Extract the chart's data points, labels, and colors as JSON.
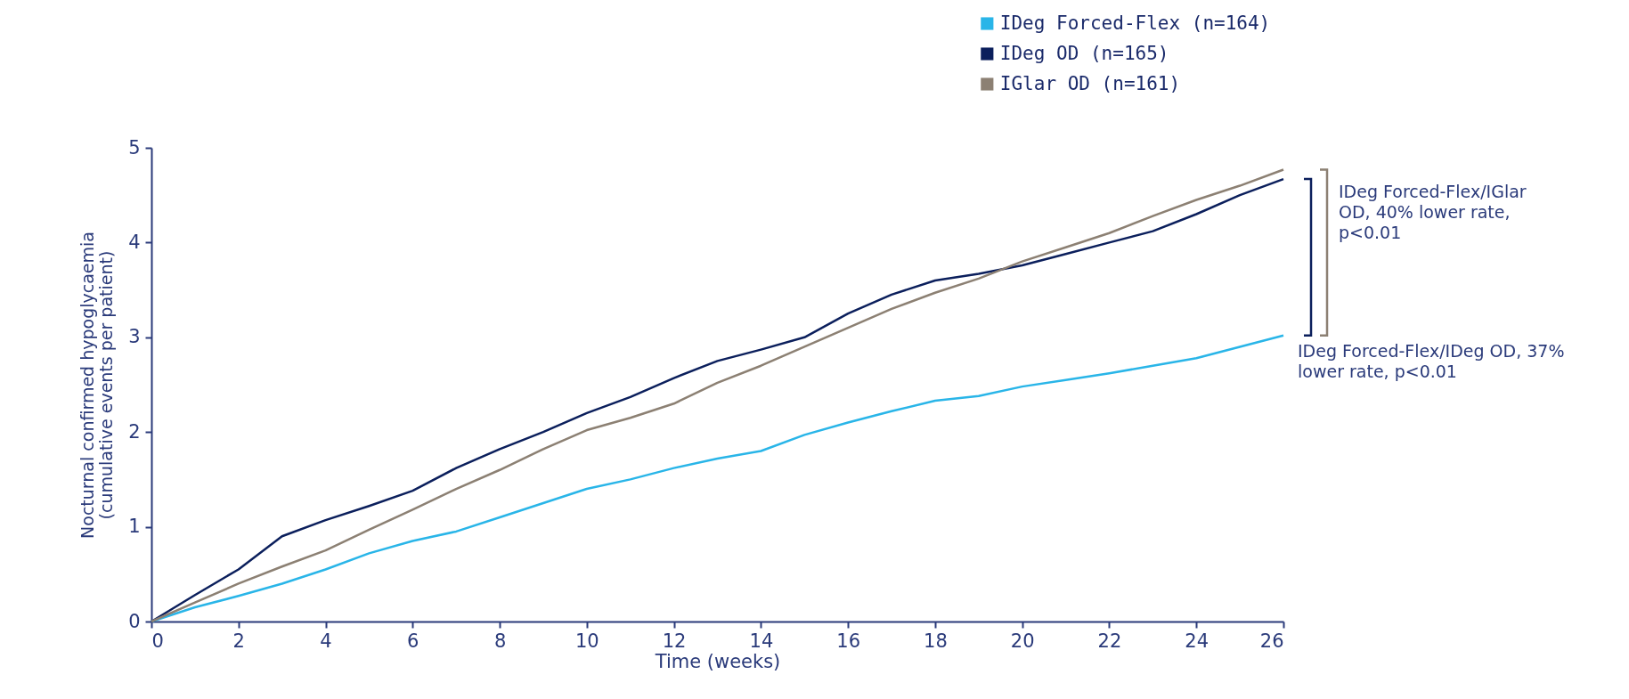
{
  "chart_data": {
    "type": "line",
    "xlabel": "Time (weeks)",
    "ylabel": "Nocturnal confirmed hypoglycaemia\n(cumulative events per patient)",
    "x": [
      0,
      1,
      2,
      3,
      4,
      5,
      6,
      7,
      8,
      9,
      10,
      11,
      12,
      13,
      14,
      15,
      16,
      17,
      18,
      19,
      20,
      21,
      22,
      23,
      24,
      25,
      26
    ],
    "series": [
      {
        "name": "IDeg Forced-Flex (n=164)",
        "color": "#29b5e8",
        "values": [
          0,
          0.15,
          0.27,
          0.4,
          0.55,
          0.72,
          0.85,
          0.95,
          1.1,
          1.25,
          1.4,
          1.5,
          1.62,
          1.72,
          1.8,
          1.97,
          2.1,
          2.22,
          2.33,
          2.38,
          2.48,
          2.55,
          2.62,
          2.7,
          2.78,
          2.9,
          3.02
        ]
      },
      {
        "name": "IDeg OD (n=165)",
        "color": "#0b1f5c",
        "values": [
          0,
          0.28,
          0.55,
          0.9,
          1.07,
          1.22,
          1.38,
          1.62,
          1.82,
          2.0,
          2.2,
          2.37,
          2.57,
          2.75,
          2.87,
          3.0,
          3.25,
          3.45,
          3.6,
          3.67,
          3.76,
          3.88,
          4.0,
          4.12,
          4.3,
          4.5,
          4.67
        ]
      },
      {
        "name": "IGlar OD (n=161)",
        "color": "#8c8073",
        "values": [
          0,
          0.2,
          0.4,
          0.58,
          0.75,
          0.97,
          1.18,
          1.4,
          1.6,
          1.82,
          2.02,
          2.15,
          2.3,
          2.52,
          2.7,
          2.9,
          3.1,
          3.3,
          3.47,
          3.62,
          3.8,
          3.95,
          4.1,
          4.28,
          4.45,
          4.6,
          4.77
        ]
      }
    ],
    "xlim": [
      0,
      26
    ],
    "xticks": [
      0,
      2,
      4,
      6,
      8,
      10,
      12,
      14,
      16,
      18,
      20,
      22,
      24,
      26
    ],
    "ylim": [
      0,
      5
    ],
    "yticks": [
      0,
      1,
      2,
      3,
      4,
      5
    ],
    "grid": false,
    "legend": "top right",
    "marker": "none",
    "line_style": "solid",
    "annotations": [
      "IDeg Forced-Flex/IGlar OD, 40% lower rate, p<0.01",
      "IDeg Forced-Flex/IDeg OD, 37% lower rate, p<0.01"
    ]
  }
}
